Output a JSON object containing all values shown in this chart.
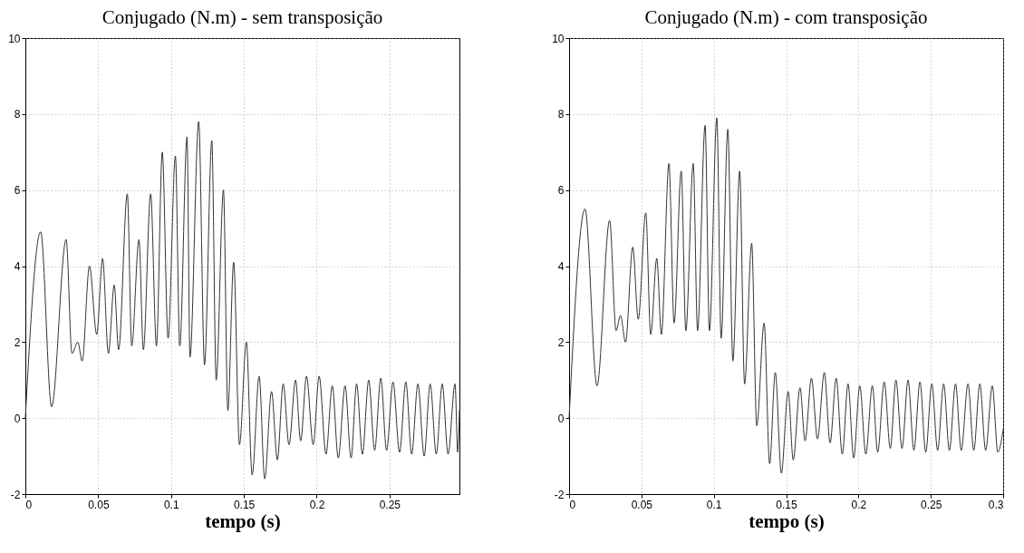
{
  "chart_data": [
    {
      "type": "line",
      "title": "Conjugado (N.m) - sem transposição",
      "xlabel": "tempo (s)",
      "color": "#333333",
      "grid": true,
      "xlim": [
        0,
        0.298
      ],
      "xticks": [
        0,
        0.05,
        0.1,
        0.15,
        0.2,
        0.25
      ],
      "ylim": [
        -2,
        10
      ],
      "yticks": [
        -2,
        0,
        2,
        4,
        6,
        8,
        10
      ],
      "x": [
        0,
        0.0105,
        0.018,
        0.028,
        0.032,
        0.036,
        0.039,
        0.044,
        0.049,
        0.053,
        0.057,
        0.061,
        0.064,
        0.07,
        0.073,
        0.078,
        0.081,
        0.086,
        0.09,
        0.094,
        0.098,
        0.103,
        0.106,
        0.111,
        0.113,
        0.119,
        0.123,
        0.128,
        0.131,
        0.136,
        0.139,
        0.143,
        0.147,
        0.1517,
        0.1557,
        0.1605,
        0.1643,
        0.169,
        0.173,
        0.177,
        0.181,
        0.1855,
        0.189,
        0.193,
        0.1976,
        0.2017,
        0.2064,
        0.2107,
        0.2148,
        0.2195,
        0.2236,
        0.2274,
        0.2314,
        0.2357,
        0.2398,
        0.244,
        0.248,
        0.2524,
        0.2569,
        0.2612,
        0.2652,
        0.2695,
        0.2738,
        0.2779,
        0.2821,
        0.2862,
        0.2902,
        0.295,
        0.2968,
        0.298
      ],
      "values": [
        0,
        4.9,
        0.3,
        4.7,
        1.7,
        2,
        1.5,
        4,
        2.2,
        4.2,
        1.7,
        3.5,
        1.8,
        5.9,
        1.9,
        4.7,
        1.8,
        5.9,
        1.9,
        7,
        2.1,
        6.9,
        1.9,
        7.4,
        1.6,
        7.8,
        1.4,
        7.3,
        1,
        6,
        0.2,
        4.1,
        -0.7,
        2,
        -1.5,
        1.1,
        -1.6,
        0.7,
        -1.1,
        0.9,
        -0.7,
        1,
        -0.6,
        1.1,
        -0.7,
        1.1,
        -0.95,
        0.85,
        -1.05,
        0.85,
        -1.05,
        0.9,
        -0.95,
        1,
        -0.85,
        1.05,
        -0.85,
        0.95,
        -0.9,
        0.95,
        -0.95,
        0.9,
        -1,
        0.9,
        -0.95,
        0.9,
        -0.95,
        0.9,
        -0.9,
        0.2
      ]
    },
    {
      "type": "line",
      "title": "Conjugado (N.m) - com transposição",
      "xlabel": "tempo (s)",
      "color": "#333333",
      "grid": true,
      "xlim": [
        0,
        0.3
      ],
      "xticks": [
        0,
        0.05,
        0.1,
        0.15,
        0.2,
        0.25,
        0.3
      ],
      "ylim": [
        -2,
        10
      ],
      "yticks": [
        -2,
        0,
        2,
        4,
        6,
        8,
        10
      ],
      "x": [
        0,
        0.011,
        0.0193,
        0.028,
        0.0325,
        0.0355,
        0.039,
        0.044,
        0.0478,
        0.053,
        0.0564,
        0.0606,
        0.0638,
        0.069,
        0.0726,
        0.0775,
        0.0807,
        0.0858,
        0.0888,
        0.094,
        0.097,
        0.1021,
        0.1051,
        0.1097,
        0.1132,
        0.1179,
        0.1213,
        0.1262,
        0.1297,
        0.1348,
        0.1386,
        0.1425,
        0.1467,
        0.1514,
        0.1549,
        0.1596,
        0.1631,
        0.1675,
        0.1717,
        0.1764,
        0.1804,
        0.1846,
        0.1888,
        0.1928,
        0.1967,
        0.2009,
        0.2051,
        0.2096,
        0.2133,
        0.2178,
        0.222,
        0.2259,
        0.2301,
        0.2343,
        0.2383,
        0.2425,
        0.2465,
        0.2507,
        0.2547,
        0.2589,
        0.2628,
        0.2671,
        0.271,
        0.2757,
        0.2797,
        0.2839,
        0.2879,
        0.2925,
        0.2963,
        0.3
      ],
      "values": [
        0,
        5.5,
        0.85,
        5.2,
        2.3,
        2.7,
        2,
        4.5,
        2.6,
        5.4,
        2.2,
        4.2,
        2.2,
        6.7,
        2.5,
        6.5,
        2.3,
        6.7,
        2.3,
        7.7,
        2.3,
        7.9,
        2.1,
        7.6,
        1.5,
        6.5,
        0.9,
        4.6,
        -0.2,
        2.5,
        -1.2,
        1.2,
        -1.45,
        0.7,
        -1.1,
        0.8,
        -0.6,
        1.05,
        -0.55,
        1.2,
        -0.65,
        1.05,
        -0.95,
        0.9,
        -1.05,
        0.85,
        -0.95,
        0.85,
        -0.9,
        0.95,
        -0.8,
        1,
        -0.8,
        1,
        -0.85,
        0.95,
        -0.9,
        0.9,
        -0.85,
        0.9,
        -0.85,
        0.9,
        -0.85,
        0.9,
        -0.85,
        0.9,
        -0.85,
        0.85,
        -0.9,
        -0.3
      ]
    }
  ]
}
